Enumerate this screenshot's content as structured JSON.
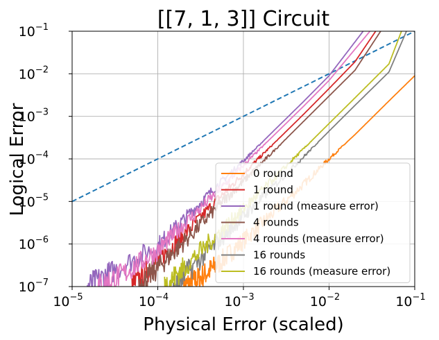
{
  "chart_data": {
    "type": "line",
    "title": "[[7, 1, 3]] Circuit",
    "xlabel": "Physical Error (scaled)",
    "ylabel": "Logical Error",
    "xscale": "log",
    "yscale": "log",
    "xlim": [
      1e-05,
      0.1
    ],
    "ylim": [
      1e-07,
      0.1
    ],
    "grid": true,
    "legend_position": "lower-right",
    "xticks": [
      {
        "base": "10",
        "exp": "−5"
      },
      {
        "base": "10",
        "exp": "−4"
      },
      {
        "base": "10",
        "exp": "−3"
      },
      {
        "base": "10",
        "exp": "−2"
      },
      {
        "base": "10",
        "exp": "−1"
      }
    ],
    "yticks": [
      {
        "base": "10",
        "exp": "−7"
      },
      {
        "base": "10",
        "exp": "−6"
      },
      {
        "base": "10",
        "exp": "−5"
      },
      {
        "base": "10",
        "exp": "−4"
      },
      {
        "base": "10",
        "exp": "−3"
      },
      {
        "base": "10",
        "exp": "−2"
      },
      {
        "base": "10",
        "exp": "−1"
      }
    ],
    "series": [
      {
        "name": "",
        "color": "#1f77b4",
        "style": "dashed",
        "x": [
          1e-05,
          0.1
        ],
        "y": [
          1e-05,
          0.1
        ]
      },
      {
        "name": "0 round",
        "color": "#ff7f0e",
        "style": "solid",
        "x": [
          0.0002,
          0.0003,
          0.0005,
          0.001,
          0.002,
          0.005,
          0.01,
          0.02,
          0.05,
          0.1
        ],
        "y": [
          1e-07,
          1.5e-07,
          3.3e-07,
          1.2e-06,
          4.4e-06,
          2.5e-05,
          0.0001,
          0.00037,
          0.0023,
          0.009
        ]
      },
      {
        "name": "1 round",
        "color": "#d62728",
        "style": "solid",
        "x": [
          5e-05,
          0.0001,
          0.0002,
          0.0005,
          0.001,
          0.002,
          0.005,
          0.01,
          0.02,
          0.035
        ],
        "y": [
          1e-07,
          4e-07,
          1.6e-06,
          1.1e-05,
          4.5e-05,
          0.00018,
          0.0011,
          0.0045,
          0.019,
          0.1
        ]
      },
      {
        "name": "1 round (measure error)",
        "color": "#9467bd",
        "style": "solid",
        "x": [
          1.5e-05,
          3e-05,
          0.0001,
          0.0002,
          0.0005,
          0.001,
          0.002,
          0.005,
          0.01,
          0.025
        ],
        "y": [
          1e-07,
          2.3e-07,
          9e-07,
          3.7e-06,
          2.4e-05,
          9e-05,
          0.00036,
          0.0022,
          0.009,
          0.1
        ]
      },
      {
        "name": "4 rounds",
        "color": "#8c564b",
        "style": "solid",
        "x": [
          6e-05,
          0.0001,
          0.0002,
          0.0005,
          0.001,
          0.002,
          0.005,
          0.01,
          0.02,
          0.04
        ],
        "y": [
          1e-07,
          2.8e-07,
          1.1e-06,
          7.5e-06,
          3e-05,
          0.00012,
          0.00075,
          0.003,
          0.012,
          0.1
        ]
      },
      {
        "name": "4 rounds (measure error)",
        "color": "#e377c2",
        "style": "solid",
        "x": [
          2e-05,
          4e-05,
          0.0001,
          0.0002,
          0.0005,
          0.001,
          0.002,
          0.005,
          0.01,
          0.03
        ],
        "y": [
          1e-07,
          2e-07,
          7e-07,
          2.8e-06,
          1.7e-05,
          7e-05,
          0.00028,
          0.0017,
          0.007,
          0.1
        ]
      },
      {
        "name": "16 rounds",
        "color": "#7f7f7f",
        "style": "solid",
        "x": [
          0.00015,
          0.0002,
          0.0005,
          0.001,
          0.002,
          0.005,
          0.01,
          0.02,
          0.05,
          0.08
        ],
        "y": [
          1e-07,
          1.8e-07,
          1.1e-06,
          4.5e-06,
          1.8e-05,
          0.00011,
          0.00045,
          0.0018,
          0.011,
          0.1
        ]
      },
      {
        "name": "16 rounds (measure error)",
        "color": "#bcbd22",
        "style": "solid",
        "x": [
          0.00012,
          0.0002,
          0.0005,
          0.001,
          0.002,
          0.005,
          0.01,
          0.02,
          0.05,
          0.07
        ],
        "y": [
          1e-07,
          2.7e-07,
          1.7e-06,
          6.8e-06,
          2.7e-05,
          0.00017,
          0.00068,
          0.0027,
          0.017,
          0.1
        ]
      }
    ]
  }
}
